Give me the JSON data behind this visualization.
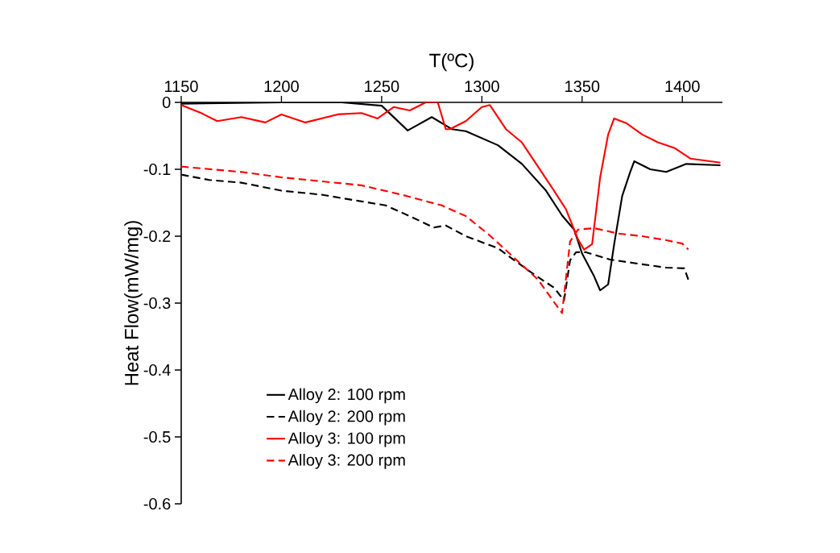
{
  "chart_data": {
    "type": "line",
    "xlabel": "T(ºC)",
    "ylabel": "Heat Flow(mW/mg)",
    "xlim": [
      1150,
      1420
    ],
    "xticks": [
      1150,
      1200,
      1250,
      1300,
      1350,
      1400
    ],
    "ylim": [
      -0.6,
      0
    ],
    "yticks": [
      -0.6,
      -0.5,
      -0.4,
      -0.3,
      -0.2,
      -0.1,
      0
    ],
    "legend": "bottom left",
    "series": [
      {
        "name": "Alloy 2: 100 rpm",
        "color": "#000000",
        "line_style": "solid",
        "x": [
          1150,
          1170,
          1200,
          1230,
          1250,
          1263,
          1275,
          1285,
          1292,
          1308,
          1320,
          1332,
          1340,
          1346,
          1350,
          1356,
          1359,
          1363,
          1366,
          1370,
          1374,
          1376,
          1384,
          1392,
          1402,
          1419
        ],
        "values": [
          -0.002,
          -0.001,
          0,
          0,
          -0.005,
          -0.042,
          -0.022,
          -0.04,
          -0.043,
          -0.064,
          -0.092,
          -0.132,
          -0.169,
          -0.19,
          -0.226,
          -0.26,
          -0.281,
          -0.272,
          -0.212,
          -0.14,
          -0.104,
          -0.088,
          -0.1,
          -0.104,
          -0.092,
          -0.094
        ]
      },
      {
        "name": "Alloy 2: 200 rpm",
        "color": "#000000",
        "line_style": "dashed",
        "x": [
          1150,
          1164,
          1180,
          1200,
          1220,
          1240,
          1252,
          1264,
          1276,
          1282,
          1292,
          1308,
          1324,
          1336,
          1341,
          1344,
          1347,
          1352,
          1364,
          1380,
          1392,
          1401,
          1403
        ],
        "values": [
          -0.108,
          -0.116,
          -0.12,
          -0.132,
          -0.138,
          -0.148,
          -0.154,
          -0.17,
          -0.187,
          -0.184,
          -0.2,
          -0.218,
          -0.253,
          -0.277,
          -0.296,
          -0.236,
          -0.224,
          -0.224,
          -0.235,
          -0.242,
          -0.247,
          -0.248,
          -0.265
        ]
      },
      {
        "name": "Alloy 3: 100 rpm",
        "color": "#ff0000",
        "line_style": "solid",
        "x": [
          1150,
          1160,
          1168,
          1180,
          1192,
          1200,
          1212,
          1228,
          1240,
          1248,
          1256,
          1264,
          1272,
          1278,
          1282,
          1284,
          1292,
          1300,
          1304,
          1312,
          1320,
          1328,
          1336,
          1342,
          1348,
          1351,
          1355,
          1359,
          1363,
          1366,
          1372,
          1380,
          1388,
          1396,
          1404,
          1419
        ],
        "values": [
          -0.004,
          -0.016,
          -0.028,
          -0.022,
          -0.03,
          -0.018,
          -0.03,
          -0.018,
          -0.016,
          -0.024,
          -0.007,
          -0.012,
          0,
          0,
          -0.04,
          -0.04,
          -0.028,
          -0.007,
          -0.004,
          -0.04,
          -0.06,
          -0.096,
          -0.132,
          -0.16,
          -0.205,
          -0.22,
          -0.212,
          -0.112,
          -0.048,
          -0.024,
          -0.031,
          -0.048,
          -0.06,
          -0.068,
          -0.084,
          -0.09
        ]
      },
      {
        "name": "Alloy 3: 200 rpm",
        "color": "#ff0000",
        "line_style": "dashed",
        "x": [
          1150,
          1180,
          1200,
          1220,
          1240,
          1260,
          1280,
          1292,
          1304,
          1316,
          1328,
          1340,
          1344,
          1348,
          1356,
          1368,
          1380,
          1392,
          1400,
          1403
        ],
        "values": [
          -0.096,
          -0.104,
          -0.112,
          -0.118,
          -0.124,
          -0.138,
          -0.154,
          -0.17,
          -0.199,
          -0.232,
          -0.265,
          -0.315,
          -0.208,
          -0.19,
          -0.188,
          -0.196,
          -0.2,
          -0.206,
          -0.211,
          -0.22
        ]
      }
    ]
  }
}
